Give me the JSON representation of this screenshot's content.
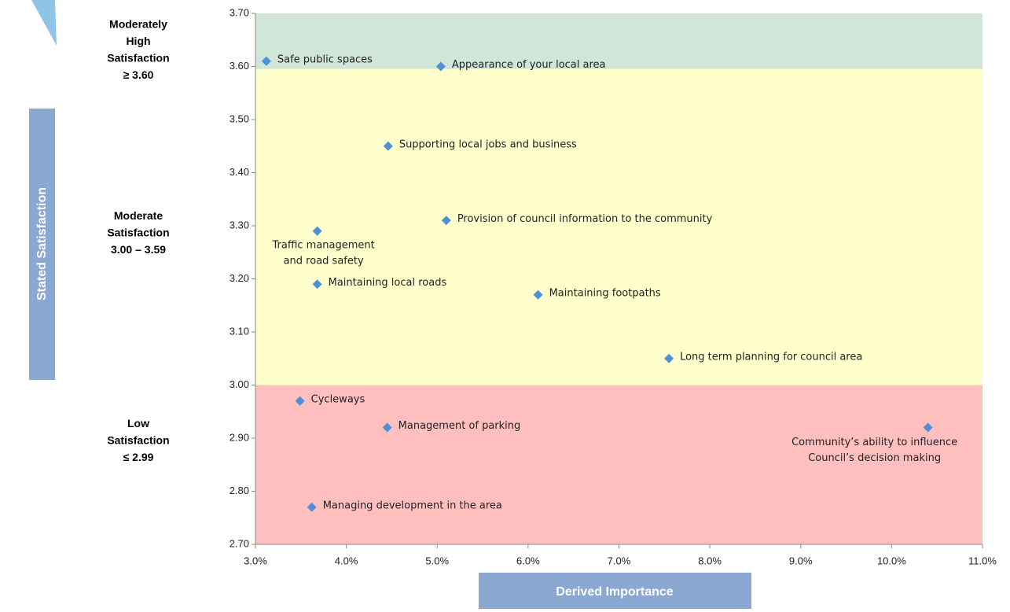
{
  "chart_data": {
    "type": "scatter",
    "x_axis_label": "Derived Importance",
    "y_axis_label": "Stated Satisfaction",
    "xlim": [
      3,
      11
    ],
    "ylim": [
      2.7,
      3.7
    ],
    "xticks": [
      {
        "value": 3,
        "label": "3.0%"
      },
      {
        "value": 4,
        "label": "4.0%"
      },
      {
        "value": 5,
        "label": "5.0%"
      },
      {
        "value": 6,
        "label": "6.0%"
      },
      {
        "value": 7,
        "label": "7.0%"
      },
      {
        "value": 8,
        "label": "8.0%"
      },
      {
        "value": 9,
        "label": "9.0%"
      },
      {
        "value": 10,
        "label": "10.0%"
      },
      {
        "value": 11,
        "label": "11.0%"
      }
    ],
    "yticks": [
      {
        "value": 2.7,
        "label": "2.70"
      },
      {
        "value": 2.8,
        "label": "2.80"
      },
      {
        "value": 2.9,
        "label": "2.90"
      },
      {
        "value": 3.0,
        "label": "3.00"
      },
      {
        "value": 3.1,
        "label": "3.10"
      },
      {
        "value": 3.2,
        "label": "3.20"
      },
      {
        "value": 3.3,
        "label": "3.30"
      },
      {
        "value": 3.4,
        "label": "3.40"
      },
      {
        "value": 3.5,
        "label": "3.50"
      },
      {
        "value": 3.6,
        "label": "3.60"
      },
      {
        "value": 3.7,
        "label": "3.70"
      }
    ],
    "color": "#4f8fd6",
    "bands": [
      {
        "from": 3.595,
        "to": 3.7,
        "color": "#cfe6d8",
        "label": [
          "Moderately",
          "High",
          "Satisfaction",
          "≥ 3.60"
        ]
      },
      {
        "from": 3.0,
        "to": 3.595,
        "color": "#ffffcc",
        "label": [
          "Moderate",
          "Satisfaction",
          "3.00 – 3.59"
        ]
      },
      {
        "from": 2.7,
        "to": 3.0,
        "color": "#ffbfbf",
        "label": [
          "Low",
          "Satisfaction",
          "≤ 2.99"
        ]
      }
    ],
    "x": [
      3.12,
      5.04,
      4.46,
      5.1,
      3.68,
      3.68,
      6.11,
      7.55,
      3.49,
      4.45,
      10.4,
      3.62
    ],
    "values": [
      3.61,
      3.6,
      3.45,
      3.31,
      3.29,
      3.19,
      3.17,
      3.05,
      2.97,
      2.92,
      2.92,
      2.77
    ],
    "point_labels": [
      [
        "Safe public spaces"
      ],
      [
        "Appearance of your local area"
      ],
      [
        "Supporting local jobs and business"
      ],
      [
        "Provision of council information to the community"
      ],
      [
        "Traffic management",
        "and road safety"
      ],
      [
        "Maintaining local roads"
      ],
      [
        "Maintaining footpaths"
      ],
      [
        "Long term planning for council area"
      ],
      [
        "Cycleways"
      ],
      [
        "Management of parking"
      ],
      [
        "Community’s ability to influence",
        "Council’s decision making"
      ],
      [
        "Managing development in the area"
      ]
    ]
  }
}
